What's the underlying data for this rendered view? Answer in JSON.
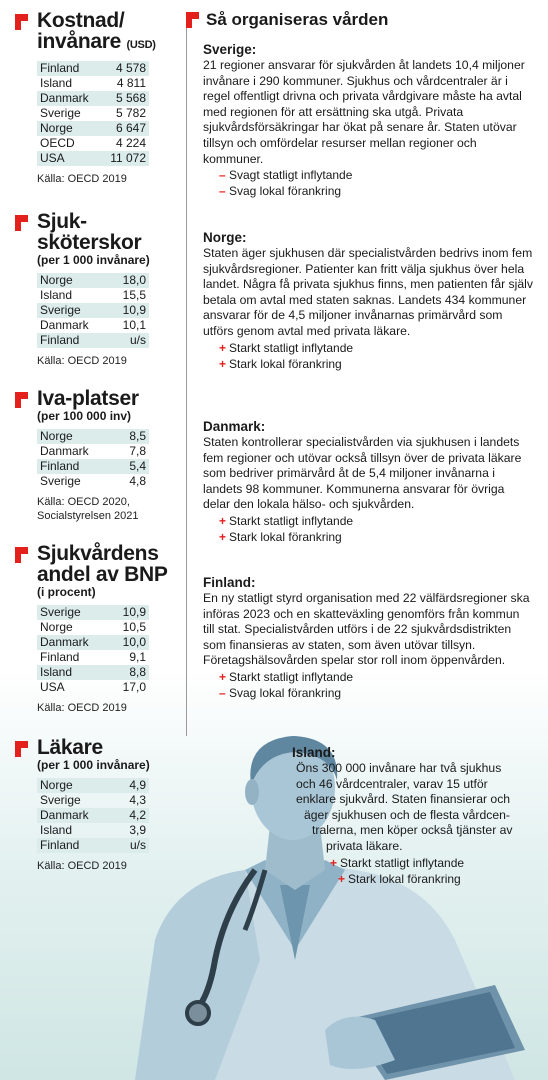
{
  "left": [
    {
      "title_line1": "Kostnad/",
      "title_line2": "invånare",
      "title_unit": "(USD)",
      "subtitle": "",
      "rows": [
        [
          "Finland",
          "4 578"
        ],
        [
          "Island",
          "4 811"
        ],
        [
          "Danmark",
          "5 568"
        ],
        [
          "Sverige",
          "5 782"
        ],
        [
          "Norge",
          "6 647"
        ],
        [
          "OECD",
          "4 224"
        ],
        [
          "USA",
          "11 072"
        ]
      ],
      "source": "Källa: OECD 2019"
    },
    {
      "title_line1": "Sjuk-",
      "title_line2": "sköterskor",
      "subtitle": "(per 1 000 invånare)",
      "rows": [
        [
          "Norge",
          "18,0"
        ],
        [
          "Island",
          "15,5"
        ],
        [
          "Sverige",
          "10,9"
        ],
        [
          "Danmark",
          "10,1"
        ],
        [
          "Finland",
          "u/s"
        ]
      ],
      "source": "Källa: OECD 2019"
    },
    {
      "title_line1": "Iva-platser",
      "subtitle": "(per 100 000 inv)",
      "rows": [
        [
          "Norge",
          "8,5"
        ],
        [
          "Danmark",
          "7,8"
        ],
        [
          "Finland",
          "5,4"
        ],
        [
          "Sverige",
          "4,8"
        ]
      ],
      "source": "Källa: OECD 2020, Socialstyrelsen 2021"
    },
    {
      "title_line1": "Sjukvårdens",
      "title_line2": "andel av BNP",
      "subtitle": "(i procent)",
      "rows": [
        [
          "Sverige",
          "10,9"
        ],
        [
          "Norge",
          "10,5"
        ],
        [
          "Danmark",
          "10,0"
        ],
        [
          "Finland",
          "9,1"
        ],
        [
          "Island",
          "8,8"
        ],
        [
          "USA",
          "17,0"
        ]
      ],
      "source": "Källa: OECD 2019"
    },
    {
      "title_line1": "Läkare",
      "subtitle": "(per 1 000 invånare)",
      "rows": [
        [
          "Norge",
          "4,9"
        ],
        [
          "Sverige",
          "4,3"
        ],
        [
          "Danmark",
          "4,2"
        ],
        [
          "Island",
          "3,9"
        ],
        [
          "Finland",
          "u/s"
        ]
      ],
      "source": "Källa: OECD 2019"
    }
  ],
  "right_title": "Så organiseras vården",
  "countries": [
    {
      "name": "Sverige:",
      "text": "21 regioner ansvarar för sjukvården åt landets 10,4 miljoner invånare i 290 kommuner. Sjukhus och vårdcentraler är i regel offentligt drivna och privata vårdgivare måste ha avtal med regionen för att ersättning ska utgå. Privata sjukvårdsförsäkringar har ökat på senare år. Staten utövar tillsyn och omfördelar resurser mellan regioner och kommuner.",
      "effects": [
        [
          "–",
          "Svagt statligt inflytande"
        ],
        [
          "–",
          "Svag lokal förankring"
        ]
      ]
    },
    {
      "name": "Norge:",
      "text": "Staten äger sjukhusen där specialistvården bedrivs inom fem sjukvårdsregioner. Patienter kan fritt välja sjukhus över hela landet. Några få privata sjukhus finns, men patienten får själv betala om avtal med staten saknas. Landets 434 kommuner ansvarar för de 4,5 miljoner invånarnas primärvård som utförs genom avtal med privata läkare.",
      "effects": [
        [
          "+",
          "Starkt statligt inflytande"
        ],
        [
          "+",
          "Stark lokal förankring"
        ]
      ]
    },
    {
      "name": "Danmark:",
      "text": "Staten kontrollerar specialistvården via sjukhusen i landets fem regioner och utövar också tillsyn över de privata läkare som bedriver primärvård åt de 5,4 miljoner invånarna i landets 98 kommuner. Kommunerna ansvarar för övriga delar den lokala hälso- och sjukvården.",
      "effects": [
        [
          "+",
          "Starkt statligt inflytande"
        ],
        [
          "+",
          "Stark lokal förankring"
        ]
      ]
    },
    {
      "name": "Finland:",
      "text": "En ny statligt styrd organisation med 22 välfärdsregioner ska införas 2023 och en skatteväxling genomförs från kommun till stat. Specialistvården utförs i de 22 sjukvårdsdistrikten som finansieras av staten, som även utövar tillsyn. Företagshälsovården spelar stor roll inom öppenvården.",
      "effects": [
        [
          "+",
          "Starkt statligt inflytande"
        ],
        [
          "–",
          "Svag lokal förankring"
        ]
      ]
    }
  ],
  "island": {
    "name": "Island:",
    "lines": [
      "Öns 300 000 invånare har två sjukhus",
      "och 46 vårdcentraler, varav 15 utför",
      "enklare sjukvård. Staten finansierar och",
      "äger sjukhusen och de flesta vårdcen-",
      "tralerna, men köper också tjänster av",
      "privata läkare."
    ],
    "effects": [
      [
        "+",
        "Starkt statligt inflytande"
      ],
      [
        "+",
        "Stark lokal förankring"
      ]
    ]
  },
  "colors": {
    "accent": "#e3201b",
    "row_tint": "#dbeceb",
    "illustration": "#a9c6d6"
  },
  "illustration": "doctor-with-stethoscope-illustration"
}
